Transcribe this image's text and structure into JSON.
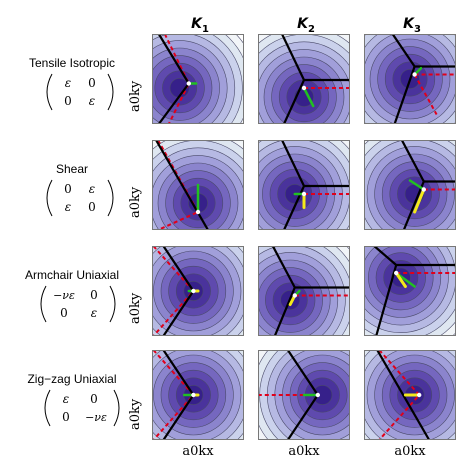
{
  "columns": [
    {
      "symbol": "K",
      "sub": "1"
    },
    {
      "symbol": "K",
      "sub": "2"
    },
    {
      "symbol": "K",
      "sub": "3"
    }
  ],
  "rows": [
    {
      "title": "Tensile Isotropic",
      "matrix": [
        [
          "ε",
          "0"
        ],
        [
          "0",
          "ε"
        ]
      ]
    },
    {
      "title": "Shear",
      "matrix": [
        [
          "0",
          "ε"
        ],
        [
          "ε",
          "0"
        ]
      ]
    },
    {
      "title": "Armchair Uniaxial",
      "matrix": [
        [
          "−νε",
          "0"
        ],
        [
          "0",
          "ε"
        ]
      ]
    },
    {
      "title": "Zig−zag Uniaxial",
      "matrix": [
        [
          "ε",
          "0"
        ],
        [
          "0",
          "−νε"
        ]
      ]
    }
  ],
  "axis_labels": {
    "y": "a0ky",
    "x": "a0kx"
  },
  "colors": {
    "contour_dark": "#3b2d8a",
    "contour_light": "#dfe7ef",
    "dashed_red": "#e0001b",
    "green_arrow": "#21c021",
    "yellow_arrow": "#f4ea1a",
    "black_line": "#000000"
  },
  "panels": [
    [
      {
        "center": [
          0.3,
          0.6
        ],
        "dot": [
          0.4,
          0.55
        ],
        "dashed": "down-left",
        "solid": "v-left",
        "green": [
          0.48,
          0.55
        ],
        "yellow": null
      },
      {
        "center": [
          0.5,
          0.7
        ],
        "dot": [
          0.5,
          0.6
        ],
        "dashed": "right",
        "solid": "v-right",
        "green": [
          0.6,
          0.8
        ],
        "yellow": null
      },
      {
        "center": [
          0.5,
          0.5
        ],
        "dot": [
          0.55,
          0.45
        ],
        "dashed": "right-up",
        "solid": "v-right",
        "green": [
          0.62,
          0.38
        ],
        "yellow": null
      }
    ],
    [
      {
        "center": [
          0.5,
          0.7
        ],
        "dot": [
          0.5,
          0.8
        ],
        "dashed": "diag",
        "solid": "diag",
        "green": [
          0.5,
          0.5
        ],
        "yellow": [
          0.5,
          0.8
        ]
      },
      {
        "center": [
          0.4,
          0.6
        ],
        "dot": [
          0.5,
          0.6
        ],
        "dashed": "right",
        "solid": "v-right",
        "green": [
          0.4,
          0.6
        ],
        "yellow": [
          0.5,
          0.75
        ]
      },
      {
        "center": [
          0.55,
          0.6
        ],
        "dot": [
          0.65,
          0.55
        ],
        "dashed": "right",
        "solid": "v-right",
        "green": [
          0.5,
          0.45
        ],
        "yellow": [
          0.55,
          0.8
        ]
      }
    ],
    [
      {
        "center": [
          0.45,
          0.5
        ],
        "dot": [
          0.45,
          0.5
        ],
        "dashed": "diag",
        "solid": "v-left",
        "green": [
          0.4,
          0.5
        ],
        "yellow": [
          0.5,
          0.5
        ]
      },
      {
        "center": [
          0.35,
          0.6
        ],
        "dot": [
          0.4,
          0.55
        ],
        "dashed": "right",
        "solid": "v-right",
        "green": [
          0.45,
          0.5
        ],
        "yellow": [
          0.35,
          0.65
        ]
      },
      {
        "center": [
          0.4,
          0.35
        ],
        "dot": [
          0.35,
          0.3
        ],
        "dashed": "right",
        "solid": "v-right",
        "green": [
          0.55,
          0.45
        ],
        "yellow": [
          0.45,
          0.45
        ]
      }
    ],
    [
      {
        "center": [
          0.45,
          0.5
        ],
        "dot": [
          0.45,
          0.5
        ],
        "dashed": "diag",
        "solid": "v-left",
        "green": [
          0.35,
          0.5
        ],
        "yellow": [
          0.5,
          0.5
        ]
      },
      {
        "center": [
          0.7,
          0.5
        ],
        "dot": [
          0.65,
          0.5
        ],
        "dashed": "left",
        "solid": "v-left",
        "green": [
          0.5,
          0.5
        ],
        "yellow": [
          0.65,
          0.5
        ]
      },
      {
        "center": [
          0.55,
          0.5
        ],
        "dot": [
          0.6,
          0.5
        ],
        "dashed": "diag",
        "solid": "diag",
        "green": [
          0.6,
          0.5
        ],
        "yellow": [
          0.45,
          0.5
        ]
      }
    ]
  ]
}
